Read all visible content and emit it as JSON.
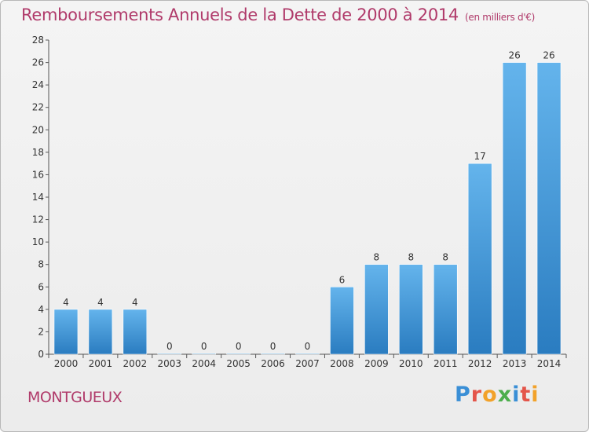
{
  "title": "Remboursements Annuels de la Dette de 2000 à 2014",
  "subtitle": "(en milliers d'€)",
  "commune": "MONTGUEUX",
  "logo": "Proxiti",
  "colors": {
    "bar_light": "#64b4ec",
    "bar_dark": "#2a7cc0",
    "title": "#b03a6a"
  },
  "chart_data": {
    "type": "bar",
    "title": "Remboursements Annuels de la Dette de 2000 à 2014",
    "subtitle": "(en milliers d'€)",
    "categories": [
      "2000",
      "2001",
      "2002",
      "2003",
      "2004",
      "2005",
      "2006",
      "2007",
      "2008",
      "2009",
      "2010",
      "2011",
      "2012",
      "2013",
      "2014"
    ],
    "values": [
      4,
      4,
      4,
      0,
      0,
      0,
      0,
      0,
      6,
      8,
      8,
      8,
      17,
      26,
      26
    ],
    "ylim": [
      0,
      28
    ],
    "yticks": [
      0,
      2,
      4,
      6,
      8,
      10,
      12,
      14,
      16,
      18,
      20,
      22,
      24,
      26,
      28
    ],
    "grid": false,
    "data_labels": true
  }
}
